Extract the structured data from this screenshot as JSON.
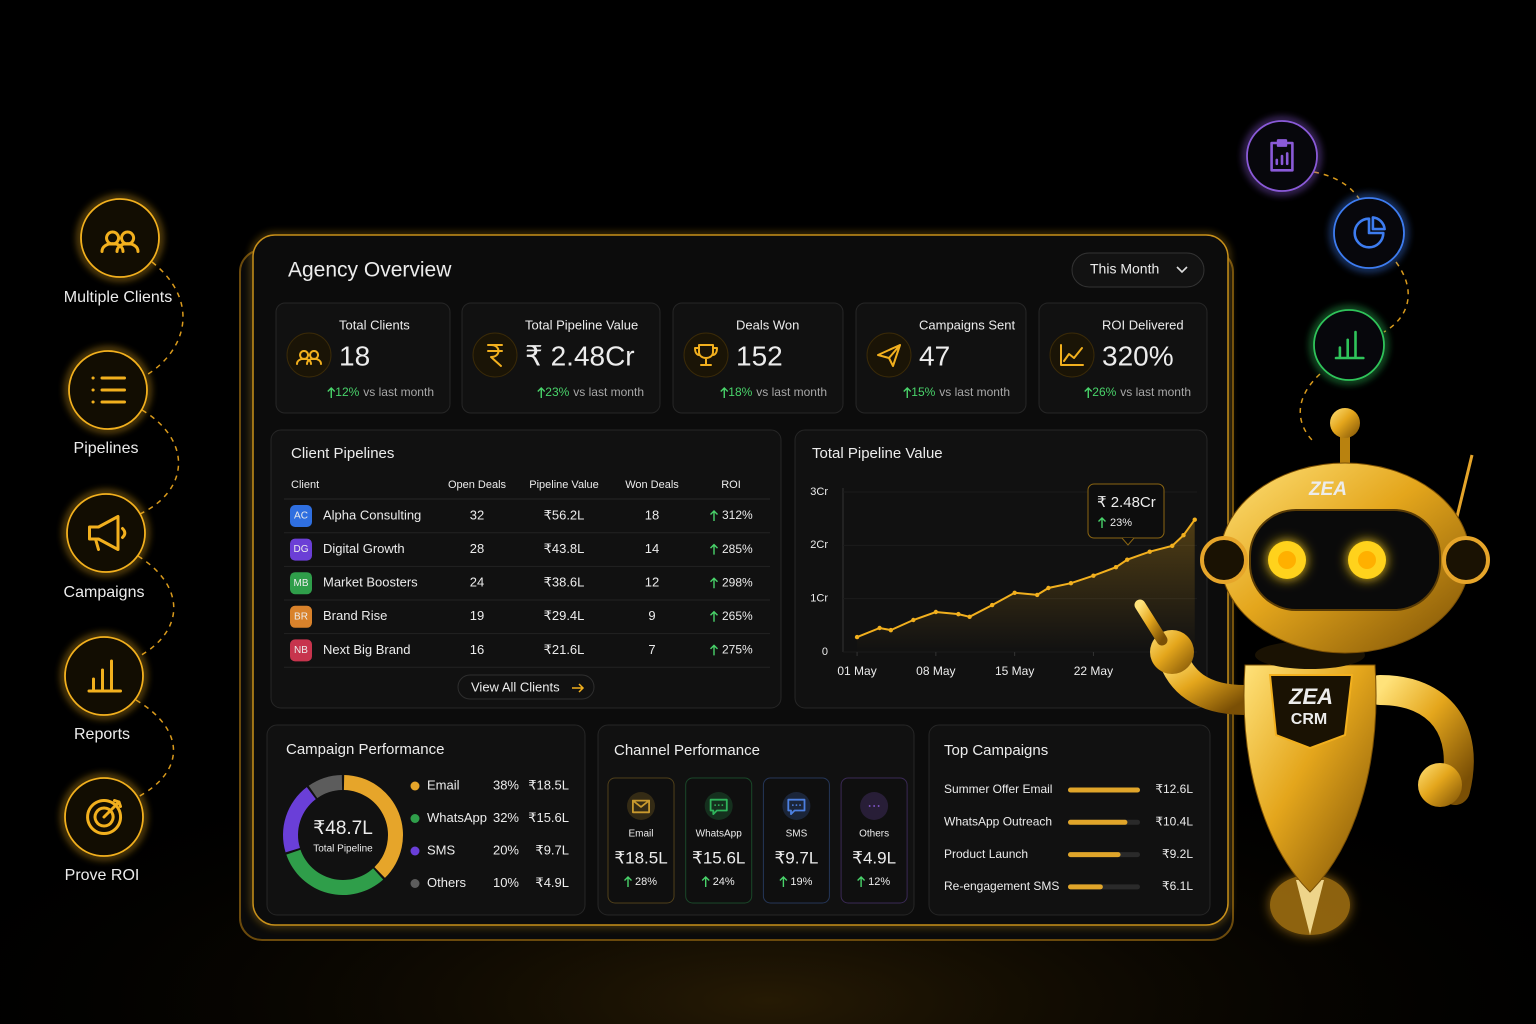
{
  "sidebar": {
    "items": [
      "Multiple Clients",
      "Pipelines",
      "Campaigns",
      "Reports",
      "Prove ROI"
    ]
  },
  "header": {
    "title": "Agency Overview",
    "period": "This Month"
  },
  "stats": [
    {
      "label": "Total Clients",
      "value": "18",
      "change": "12%",
      "note": "vs last month"
    },
    {
      "label": "Total Pipeline Value",
      "value": "₹ 2.48Cr",
      "change": "23%",
      "note": "vs last month"
    },
    {
      "label": "Deals Won",
      "value": "152",
      "change": "18%",
      "note": "vs last month"
    },
    {
      "label": "Campaigns Sent",
      "value": "47",
      "change": "15%",
      "note": "vs last month"
    },
    {
      "label": "ROI Delivered",
      "value": "320%",
      "change": "26%",
      "note": "vs last month"
    }
  ],
  "client_pipelines": {
    "title": "Client Pipelines",
    "columns": [
      "Client",
      "Open Deals",
      "Pipeline Value",
      "Won Deals",
      "ROI"
    ],
    "rows": [
      {
        "badge": "AC",
        "badge_color": "#2f6fe0",
        "client": "Alpha Consulting",
        "open_deals": 32,
        "pipeline_value": "₹56.2L",
        "won_deals": 18,
        "roi": "312%"
      },
      {
        "badge": "DG",
        "badge_color": "#6b3fd6",
        "client": "Digital Growth",
        "open_deals": 28,
        "pipeline_value": "₹43.8L",
        "won_deals": 14,
        "roi": "285%"
      },
      {
        "badge": "MB",
        "badge_color": "#2f9e4a",
        "client": "Market Boosters",
        "open_deals": 24,
        "pipeline_value": "₹38.6L",
        "won_deals": 12,
        "roi": "298%"
      },
      {
        "badge": "BR",
        "badge_color": "#d9822b",
        "client": "Brand Rise",
        "open_deals": 19,
        "pipeline_value": "₹29.4L",
        "won_deals": 9,
        "roi": "265%"
      },
      {
        "badge": "NB",
        "badge_color": "#c7344d",
        "client": "Next Big Brand",
        "open_deals": 16,
        "pipeline_value": "₹21.6L",
        "won_deals": 7,
        "roi": "275%"
      }
    ],
    "link": "View All Clients"
  },
  "pipeline_chart": {
    "type": "line",
    "title": "Total Pipeline Value",
    "x": [
      1,
      3,
      4,
      6,
      8,
      10,
      11,
      13,
      15,
      17,
      18,
      20,
      22,
      24,
      25,
      27,
      29,
      30,
      31
    ],
    "values": [
      0.28,
      0.45,
      0.41,
      0.6,
      0.75,
      0.71,
      0.66,
      0.88,
      1.11,
      1.07,
      1.2,
      1.29,
      1.43,
      1.59,
      1.73,
      1.88,
      1.99,
      2.19,
      2.48
    ],
    "xlim": [
      -0.25,
      31.2
    ],
    "ylim": [
      0,
      3
    ],
    "yticks": [
      0,
      {
        "value": 1,
        "label": "1Cr"
      },
      {
        "value": 2,
        "label": "2Cr"
      },
      {
        "value": 3,
        "label": "3Cr"
      }
    ],
    "xticks": [
      {
        "value": 1,
        "label": "01 May"
      },
      {
        "value": 8,
        "label": "08 May"
      },
      {
        "value": 15,
        "label": "15 May"
      },
      {
        "value": 22,
        "label": "22 May"
      }
    ],
    "color": "#f2b01e",
    "tooltip": {
      "value": "₹ 2.48Cr",
      "change": "23%"
    }
  },
  "campaign_performance": {
    "type": "pie",
    "title": "Campaign Performance",
    "center_value": "₹48.7L",
    "center_label": "Total Pipeline",
    "categories": [
      "Email",
      "WhatsApp",
      "SMS",
      "Others"
    ],
    "values": [
      38,
      32,
      20,
      10
    ],
    "value_labels": [
      "38%",
      "32%",
      "20%",
      "10%"
    ],
    "amounts": [
      "₹18.5L",
      "₹15.6L",
      "₹9.7L",
      "₹4.9L"
    ],
    "colors": [
      "#e6a52a",
      "#2f9e4a",
      "#6a3fd8",
      "#5c5c5c"
    ]
  },
  "channel_performance": {
    "title": "Channel Performance",
    "channels": [
      {
        "name": "Email",
        "value": "₹18.5L",
        "change": "28%",
        "color": "#c99a2e"
      },
      {
        "name": "WhatsApp",
        "value": "₹15.6L",
        "change": "24%",
        "color": "#2fb35a"
      },
      {
        "name": "SMS",
        "value": "₹9.7L",
        "change": "19%",
        "color": "#4c7fe0"
      },
      {
        "name": "Others",
        "value": "₹4.9L",
        "change": "12%",
        "color": "#8a5ad8"
      }
    ]
  },
  "top_campaigns": {
    "type": "bar",
    "title": "Top Campaigns",
    "categories": [
      "Summer Offer Email",
      "WhatsApp Outreach",
      "Product Launch",
      "Re-engagement SMS"
    ],
    "values": [
      12.6,
      10.4,
      9.2,
      6.1
    ],
    "value_labels": [
      "₹12.6L",
      "₹10.4L",
      "₹9.2L",
      "₹6.1L"
    ],
    "color": "#e0a52a"
  },
  "robot": {
    "head_badge": "ZEA",
    "chest": [
      "ZEA",
      "CRM"
    ]
  }
}
